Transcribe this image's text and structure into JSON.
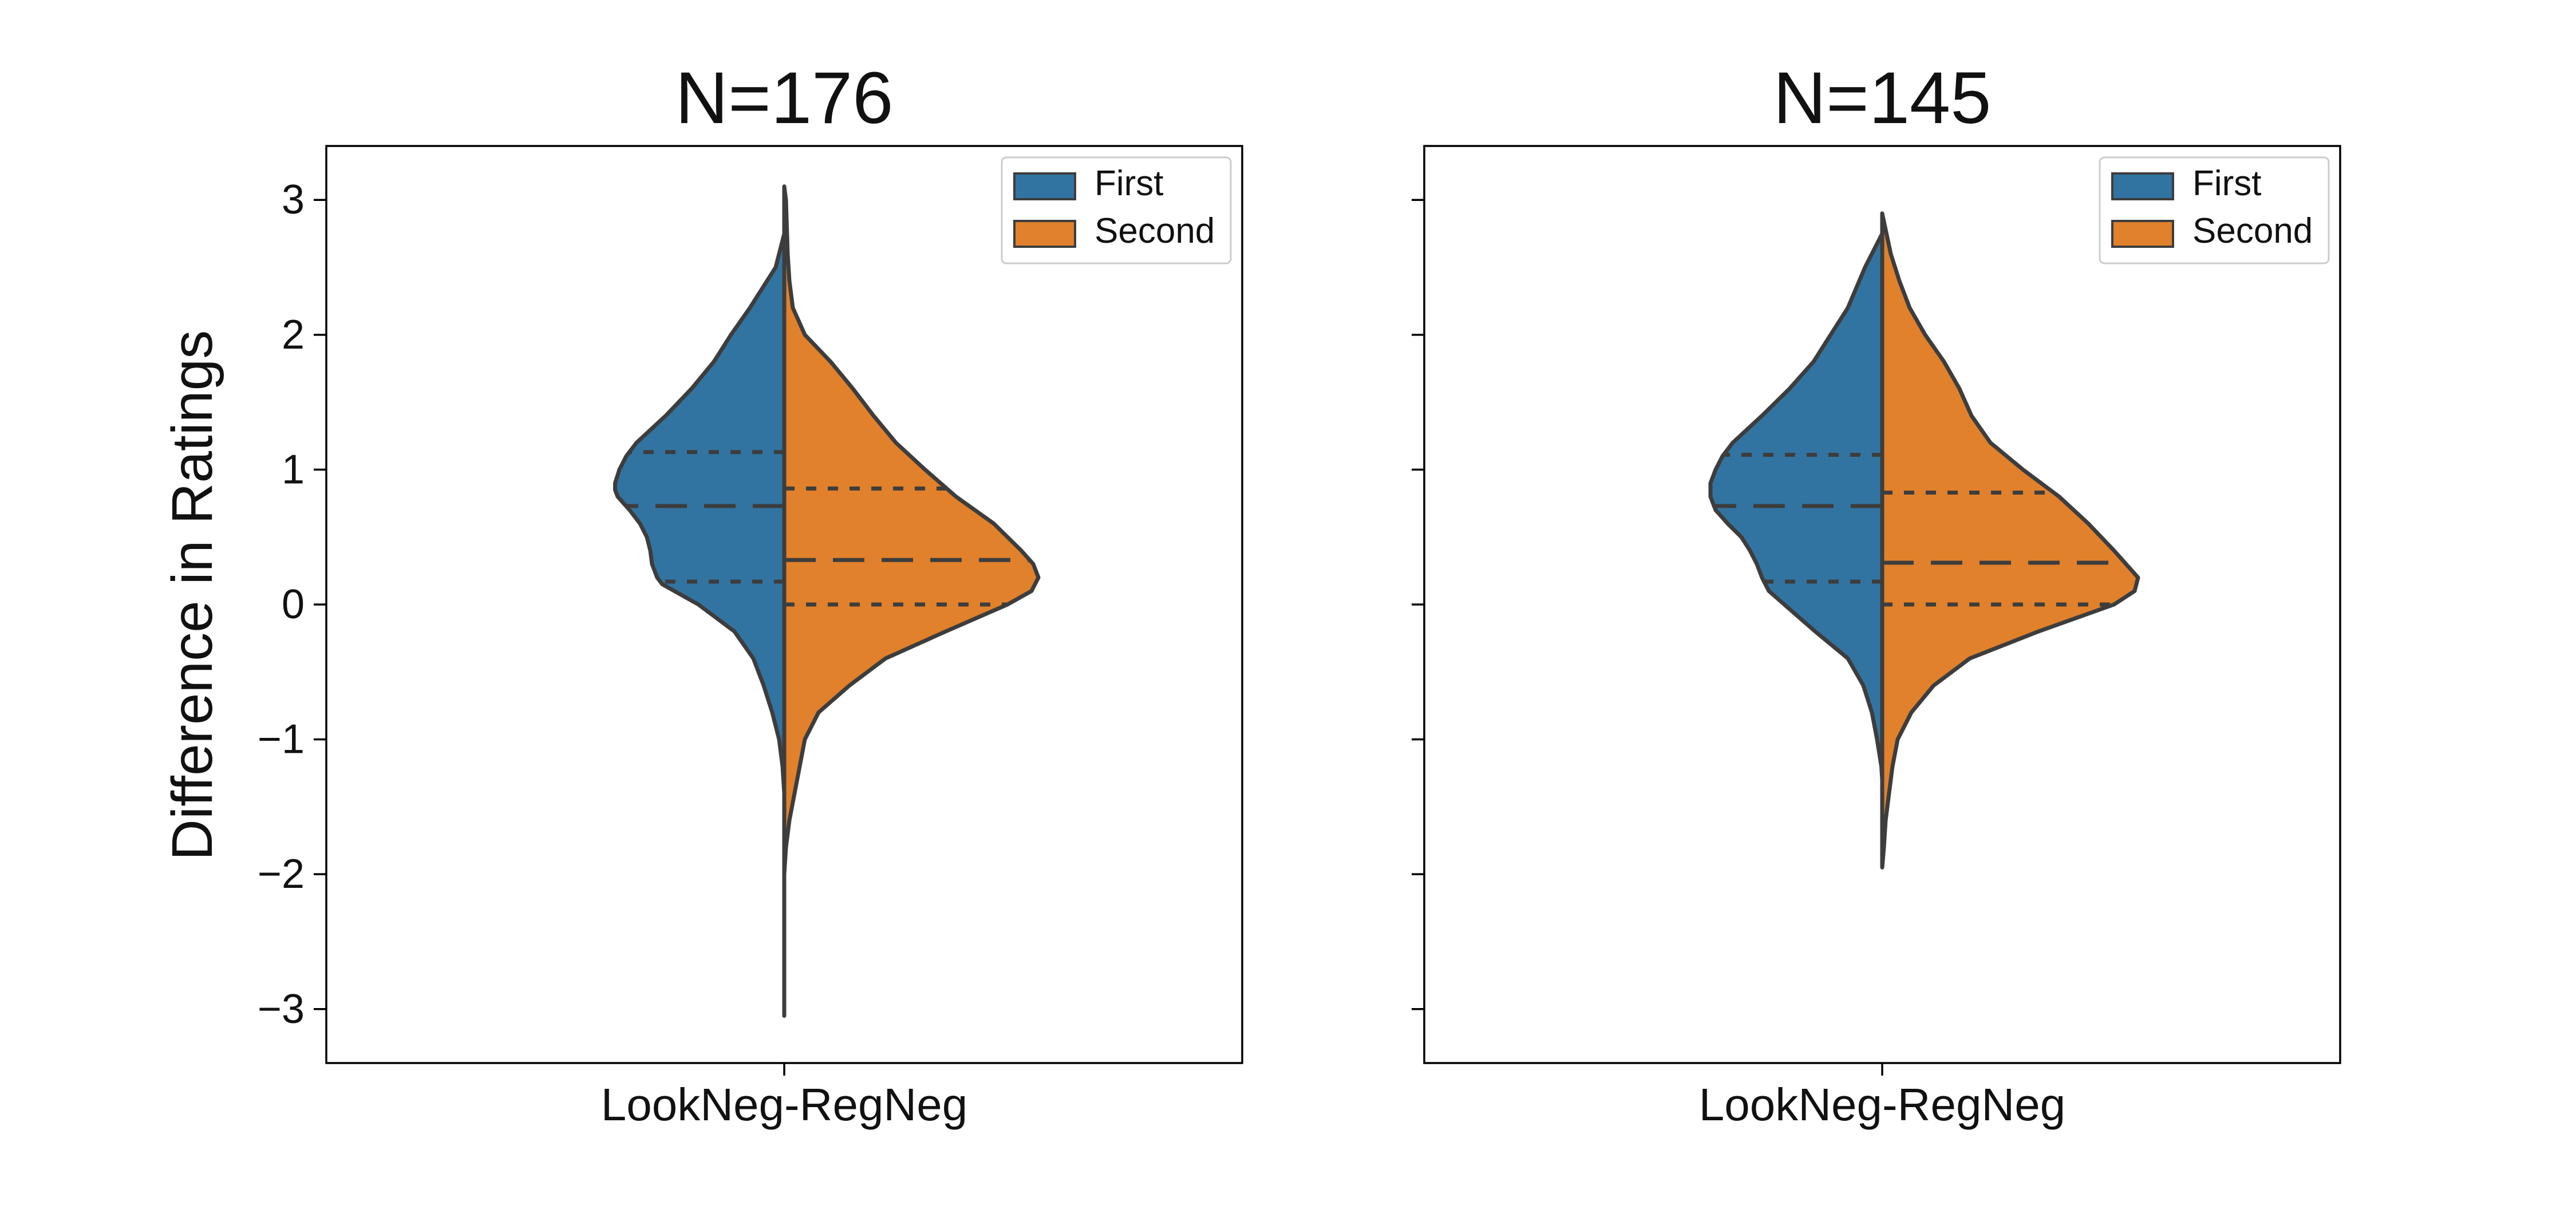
{
  "colors": {
    "first": "#3274a1",
    "second": "#e1812c",
    "edge": "#3d3d3d",
    "axis": "#000000"
  },
  "ylabel": "Difference in Ratings",
  "y_ticks": [
    -3,
    -2,
    -1,
    0,
    1,
    2,
    3
  ],
  "y_tick_labels": [
    "−3",
    "−2",
    "−1",
    "0",
    "1",
    "2",
    "3"
  ],
  "legend": {
    "placement": "upper right",
    "entries": [
      "First",
      "Second"
    ]
  },
  "chart_data": [
    {
      "type": "violin",
      "title": "N=176",
      "category": "LookNeg-RegNeg",
      "ylim": [
        -3.4,
        3.4
      ],
      "y_tick_labels_visible": true,
      "series": [
        {
          "name": "First",
          "side": "left",
          "y_range": [
            -1.8,
            2.75
          ],
          "quartiles": {
            "q1": 0.17,
            "median": 0.73,
            "q3": 1.13
          },
          "density": [
            [
              2.75,
              0
            ],
            [
              2.5,
              0.05
            ],
            [
              2.2,
              0.2
            ],
            [
              2.0,
              0.31
            ],
            [
              1.8,
              0.41
            ],
            [
              1.6,
              0.54
            ],
            [
              1.4,
              0.69
            ],
            [
              1.2,
              0.86
            ],
            [
              1.1,
              0.92
            ],
            [
              1.0,
              0.96
            ],
            [
              0.9,
              0.985
            ],
            [
              0.85,
              0.985
            ],
            [
              0.8,
              0.97
            ],
            [
              0.7,
              0.9
            ],
            [
              0.6,
              0.84
            ],
            [
              0.5,
              0.8
            ],
            [
              0.4,
              0.78
            ],
            [
              0.3,
              0.77
            ],
            [
              0.2,
              0.74
            ],
            [
              0.15,
              0.71
            ],
            [
              0.1,
              0.64
            ],
            [
              0.0,
              0.5
            ],
            [
              -0.2,
              0.29
            ],
            [
              -0.4,
              0.18
            ],
            [
              -0.6,
              0.12
            ],
            [
              -0.8,
              0.07
            ],
            [
              -1.0,
              0.03
            ],
            [
              -1.2,
              0.01
            ],
            [
              -1.4,
              0.0
            ],
            [
              -1.6,
              0.0
            ],
            [
              -1.8,
              0
            ]
          ]
        },
        {
          "name": "Second",
          "side": "right",
          "y_range": [
            -3.05,
            3.1
          ],
          "quartiles": {
            "q1": 0.0,
            "median": 0.33,
            "q3": 0.86
          },
          "density": [
            [
              3.1,
              0
            ],
            [
              3.0,
              0.01
            ],
            [
              2.8,
              0.015
            ],
            [
              2.6,
              0.02
            ],
            [
              2.4,
              0.03
            ],
            [
              2.2,
              0.05
            ],
            [
              2.0,
              0.12
            ],
            [
              1.8,
              0.27
            ],
            [
              1.6,
              0.4
            ],
            [
              1.4,
              0.52
            ],
            [
              1.2,
              0.65
            ],
            [
              1.0,
              0.82
            ],
            [
              0.8,
              1.0
            ],
            [
              0.6,
              1.22
            ],
            [
              0.4,
              1.38
            ],
            [
              0.3,
              1.45
            ],
            [
              0.2,
              1.48
            ],
            [
              0.1,
              1.44
            ],
            [
              0.0,
              1.3
            ],
            [
              -0.2,
              0.94
            ],
            [
              -0.4,
              0.59
            ],
            [
              -0.6,
              0.38
            ],
            [
              -0.8,
              0.2
            ],
            [
              -1.0,
              0.12
            ],
            [
              -1.2,
              0.09
            ],
            [
              -1.4,
              0.06
            ],
            [
              -1.6,
              0.03
            ],
            [
              -1.8,
              0.01
            ],
            [
              -2.0,
              0.0
            ],
            [
              -2.2,
              0.0
            ],
            [
              -2.6,
              0.0
            ],
            [
              -3.05,
              0
            ]
          ]
        }
      ]
    },
    {
      "type": "violin",
      "title": "N=145",
      "category": "LookNeg-RegNeg",
      "ylim": [
        -3.4,
        3.4
      ],
      "y_tick_labels_visible": false,
      "series": [
        {
          "name": "First",
          "side": "left",
          "y_range": [
            -1.3,
            2.75
          ],
          "quartiles": {
            "q1": 0.17,
            "median": 0.73,
            "q3": 1.11
          },
          "density": [
            [
              2.75,
              0
            ],
            [
              2.5,
              0.1
            ],
            [
              2.2,
              0.2
            ],
            [
              2.0,
              0.3
            ],
            [
              1.8,
              0.4
            ],
            [
              1.6,
              0.54
            ],
            [
              1.4,
              0.7
            ],
            [
              1.2,
              0.87
            ],
            [
              1.1,
              0.93
            ],
            [
              1.0,
              0.97
            ],
            [
              0.9,
              1.0
            ],
            [
              0.8,
              1.0
            ],
            [
              0.7,
              0.97
            ],
            [
              0.6,
              0.9
            ],
            [
              0.5,
              0.82
            ],
            [
              0.4,
              0.77
            ],
            [
              0.3,
              0.73
            ],
            [
              0.2,
              0.7
            ],
            [
              0.1,
              0.66
            ],
            [
              0.0,
              0.57
            ],
            [
              -0.2,
              0.39
            ],
            [
              -0.4,
              0.2
            ],
            [
              -0.6,
              0.11
            ],
            [
              -0.8,
              0.06
            ],
            [
              -1.0,
              0.03
            ],
            [
              -1.2,
              0.005
            ],
            [
              -1.3,
              0
            ]
          ]
        },
        {
          "name": "Second",
          "side": "right",
          "y_range": [
            -1.95,
            2.9
          ],
          "quartiles": {
            "q1": 0.0,
            "median": 0.31,
            "q3": 0.83
          },
          "density": [
            [
              2.9,
              0
            ],
            [
              2.6,
              0.05
            ],
            [
              2.4,
              0.1
            ],
            [
              2.2,
              0.16
            ],
            [
              2.0,
              0.25
            ],
            [
              1.8,
              0.36
            ],
            [
              1.6,
              0.45
            ],
            [
              1.4,
              0.52
            ],
            [
              1.2,
              0.63
            ],
            [
              1.0,
              0.82
            ],
            [
              0.8,
              1.03
            ],
            [
              0.6,
              1.2
            ],
            [
              0.4,
              1.35
            ],
            [
              0.2,
              1.49
            ],
            [
              0.1,
              1.47
            ],
            [
              0.0,
              1.35
            ],
            [
              -0.2,
              0.91
            ],
            [
              -0.4,
              0.51
            ],
            [
              -0.6,
              0.3
            ],
            [
              -0.8,
              0.17
            ],
            [
              -1.0,
              0.09
            ],
            [
              -1.2,
              0.06
            ],
            [
              -1.4,
              0.04
            ],
            [
              -1.6,
              0.02
            ],
            [
              -1.8,
              0.01
            ],
            [
              -1.95,
              0
            ]
          ]
        }
      ]
    }
  ]
}
